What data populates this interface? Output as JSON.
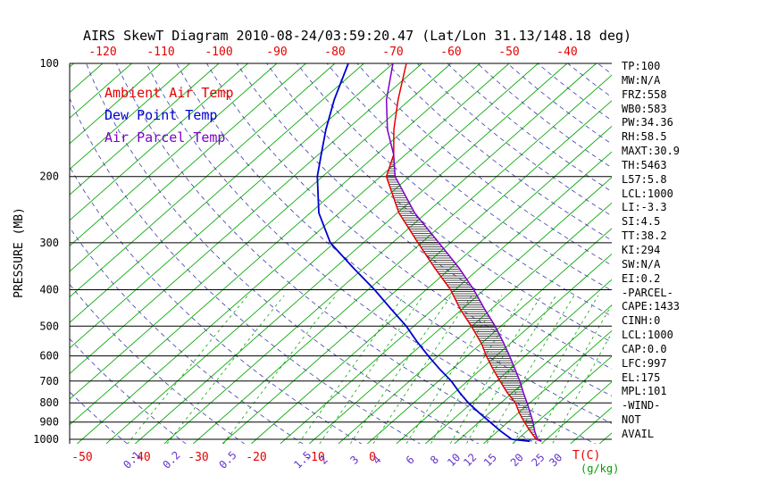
{
  "title": "AIRS SkewT Diagram 2010-08-24/03:59:20.47 (Lat/Lon 31.13/148.18 deg)",
  "legend": {
    "items": [
      {
        "key": "ambient",
        "label": "Ambient Air Temp",
        "color": "#e60000"
      },
      {
        "key": "dewpoint",
        "label": "Dew Point Temp",
        "color": "#0000d0"
      },
      {
        "key": "parcel",
        "label": "Air Parcel Temp",
        "color": "#7d00c8"
      }
    ]
  },
  "stats_panel": {
    "lines": [
      "TP:100",
      "MW:N/A",
      "FRZ:558",
      "WB0:583",
      "PW:34.36",
      "RH:58.5",
      "MAXT:30.9",
      "TH:5463",
      "L57:5.8",
      "LCL:1000",
      "LI:-3.3",
      "SI:4.5",
      "TT:38.2",
      "KI:294",
      "SW:N/A",
      "EI:0.2",
      "-PARCEL-",
      "CAPE:1433",
      "CINH:0",
      "LCL:1000",
      "CAP:0.0",
      "LFC:997",
      "EL:175",
      "MPL:101",
      "-WIND-",
      "NOT",
      "AVAIL"
    ]
  },
  "chart_data": {
    "type": "line",
    "variant": "skew-t-log-p",
    "title": "AIRS SkewT Diagram 2010-08-24/03:59:20.47 (Lat/Lon 31.13/148.18 deg)",
    "y_axis": {
      "label": "PRESSURE (MB)",
      "scale": "log",
      "range": [
        100,
        1012
      ],
      "ticks": [
        100,
        200,
        300,
        400,
        500,
        600,
        700,
        800,
        900,
        1000
      ]
    },
    "x_axis_top": {
      "color": "#e60000",
      "ticks": [
        -120,
        -110,
        -100,
        -90,
        -80,
        -70,
        -60,
        -50,
        -40
      ]
    },
    "x_axis_bottom": {
      "label": "T(C)",
      "color": "#e60000",
      "ticks": [
        -50,
        -40,
        -30,
        -20,
        -10,
        0
      ]
    },
    "mixing_ratio_axis": {
      "label": "(g/kg)",
      "label_color": "#00a000",
      "tick_color": "#6633cc",
      "ticks": [
        0.1,
        0.2,
        0.5,
        1.5,
        2,
        3,
        4,
        6,
        8,
        10,
        12,
        15,
        20,
        25,
        30
      ]
    },
    "grid": {
      "isotherm_step_c": 5,
      "isotherm_color": "#00a800",
      "dry_adiabat_color": "#3c3ca8",
      "mixing_line_color": "#00a800"
    },
    "series": [
      {
        "key": "ambient",
        "name": "Ambient Air Temp",
        "color": "#e60000",
        "points": [
          [
            1012,
            29.5
          ],
          [
            1000,
            28.2
          ],
          [
            950,
            25.5
          ],
          [
            900,
            22.8
          ],
          [
            850,
            20.1
          ],
          [
            800,
            17.5
          ],
          [
            750,
            14.0
          ],
          [
            700,
            10.6
          ],
          [
            650,
            7.0
          ],
          [
            600,
            3.3
          ],
          [
            558,
            0.2
          ],
          [
            500,
            -5.1
          ],
          [
            450,
            -10.4
          ],
          [
            400,
            -15.8
          ],
          [
            350,
            -22.8
          ],
          [
            300,
            -30.6
          ],
          [
            250,
            -39.7
          ],
          [
            200,
            -49.0
          ],
          [
            175,
            -52.0
          ],
          [
            150,
            -56.9
          ],
          [
            125,
            -62.0
          ],
          [
            100,
            -67.7
          ]
        ]
      },
      {
        "key": "dewpoint",
        "name": "Dew Point Temp",
        "color": "#0000d0",
        "points": [
          [
            1012,
            27.5
          ],
          [
            1000,
            24.0
          ],
          [
            950,
            20.4
          ],
          [
            900,
            16.9
          ],
          [
            850,
            13.2
          ],
          [
            800,
            9.4
          ],
          [
            750,
            5.8
          ],
          [
            700,
            2.2
          ],
          [
            650,
            -2.2
          ],
          [
            600,
            -6.7
          ],
          [
            550,
            -11.4
          ],
          [
            500,
            -16.3
          ],
          [
            450,
            -22.3
          ],
          [
            400,
            -28.9
          ],
          [
            350,
            -36.8
          ],
          [
            300,
            -45.7
          ],
          [
            250,
            -53.5
          ],
          [
            200,
            -60.9
          ],
          [
            175,
            -64.5
          ],
          [
            150,
            -68.6
          ],
          [
            125,
            -73.0
          ],
          [
            100,
            -77.7
          ]
        ]
      },
      {
        "key": "parcel",
        "name": "Air Parcel Temp",
        "color": "#7d00c8",
        "points": [
          [
            1012,
            29.5
          ],
          [
            997,
            28.3
          ],
          [
            950,
            26.3
          ],
          [
            900,
            24.3
          ],
          [
            850,
            22.0
          ],
          [
            800,
            19.5
          ],
          [
            750,
            16.8
          ],
          [
            700,
            14.0
          ],
          [
            650,
            10.8
          ],
          [
            600,
            7.3
          ],
          [
            550,
            3.4
          ],
          [
            500,
            -1.0
          ],
          [
            450,
            -6.2
          ],
          [
            400,
            -11.8
          ],
          [
            350,
            -18.6
          ],
          [
            300,
            -27.0
          ],
          [
            250,
            -37.0
          ],
          [
            200,
            -47.5
          ],
          [
            175,
            -52.0
          ],
          [
            150,
            -58.0
          ],
          [
            125,
            -64.0
          ],
          [
            100,
            -70.0
          ]
        ]
      }
    ],
    "hatch": {
      "between": [
        "ambient",
        "parcel"
      ],
      "from_pressure": 997,
      "to_pressure": 175,
      "color": "#1a1a1a"
    }
  }
}
